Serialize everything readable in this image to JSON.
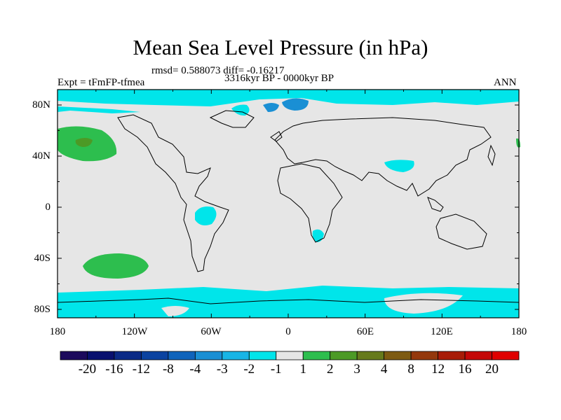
{
  "header": {
    "title": "Mean Sea Level Pressure (in hPa)",
    "stats": "rmsd= 0.588073 diff= -0.16217",
    "expt": "Expt = tFmFP-tfmea",
    "period": "3316kyr BP - 0000kyr BP",
    "season": "ANN"
  },
  "map": {
    "lat_labels": [
      "80N",
      "40N",
      "0",
      "40S",
      "80S"
    ],
    "lon_labels": [
      "180",
      "120W",
      "60W",
      "0",
      "60E",
      "120E",
      "180"
    ],
    "background_color": "#e6e6e6",
    "coast_color": "#000000"
  },
  "colorbar": {
    "labels": [
      "-20",
      "-16",
      "-12",
      "-8",
      "-4",
      "-3",
      "-2",
      "-1",
      "1",
      "2",
      "3",
      "4",
      "8",
      "12",
      "16",
      "20"
    ],
    "colors": [
      "#1c0a5c",
      "#08106e",
      "#0a2a86",
      "#0b43a0",
      "#0f63bb",
      "#1a8fd4",
      "#18b5e6",
      "#00e5ea",
      "#e6e6e6",
      "#2dbe4e",
      "#4c9a26",
      "#667a1c",
      "#7d5a12",
      "#94380c",
      "#a81c08",
      "#c40808",
      "#e00000"
    ]
  }
}
